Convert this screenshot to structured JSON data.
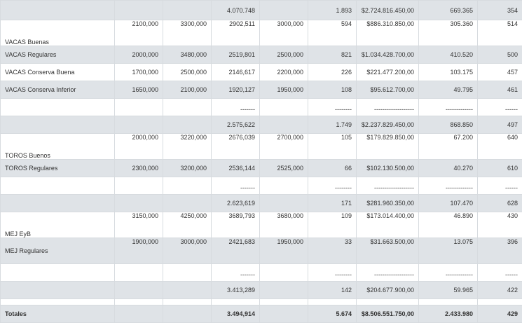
{
  "rows": [
    {
      "id": "r0",
      "style": "tint",
      "h": 28,
      "label": "",
      "labelPos": "top",
      "cells": [
        "",
        "",
        "4.070.748",
        "",
        "1.893",
        "$2.724.816.450,00",
        "669.365",
        "354"
      ]
    },
    {
      "id": "r1",
      "style": "plain tall",
      "h": 37,
      "label": "VACAS Buenas",
      "labelPos": "bottom",
      "cells": [
        "2100,000",
        "3300,000",
        "2902,511",
        "3000,000",
        "594",
        "$886.310.850,00",
        "305.360",
        "514"
      ]
    },
    {
      "id": "r2",
      "style": "tint",
      "h": 25,
      "label": "VACAS Regulares",
      "labelPos": "mid",
      "cells": [
        "2000,000",
        "3480,000",
        "2519,801",
        "2500,000",
        "821",
        "$1.034.428.700,00",
        "410.520",
        "500"
      ]
    },
    {
      "id": "r3",
      "style": "plain",
      "h": 25,
      "label": "VACAS Conserva Buena",
      "labelPos": "mid",
      "cells": [
        "1700,000",
        "2500,000",
        "2146,617",
        "2200,000",
        "226",
        "$221.477.200,00",
        "103.175",
        "457"
      ]
    },
    {
      "id": "r4",
      "style": "tint",
      "h": 25,
      "label": "VACAS Conserva Inferior",
      "labelPos": "mid",
      "cells": [
        "1650,000",
        "2100,000",
        "1920,127",
        "1950,000",
        "108",
        "$95.612.700,00",
        "49.795",
        "461"
      ]
    },
    {
      "id": "r5",
      "style": "plain",
      "h": 25,
      "label": "",
      "labelPos": "mid",
      "cells": [
        "",
        "",
        "-------",
        "",
        "--------",
        "-------------------",
        "-------------",
        "------"
      ]
    },
    {
      "id": "r6",
      "style": "tint",
      "h": 25,
      "label": "",
      "labelPos": "mid",
      "cells": [
        "",
        "",
        "2.575,622",
        "",
        "1.749",
        "$2.237.829.450,00",
        "868.850",
        "497"
      ]
    },
    {
      "id": "r7",
      "style": "plain tall",
      "h": 37,
      "label": "TOROS Buenos",
      "labelPos": "bottom",
      "cells": [
        "2000,000",
        "3220,000",
        "2676,039",
        "2700,000",
        "105",
        "$179.829.850,00",
        "67.200",
        "640"
      ]
    },
    {
      "id": "r8",
      "style": "tint",
      "h": 25,
      "label": "TOROS Regulares",
      "labelPos": "mid",
      "cells": [
        "2300,000",
        "3200,000",
        "2536,144",
        "2525,000",
        "66",
        "$102.130.500,00",
        "40.270",
        "610"
      ]
    },
    {
      "id": "r9",
      "style": "plain",
      "h": 25,
      "label": "",
      "labelPos": "mid",
      "cells": [
        "",
        "",
        "-------",
        "",
        "--------",
        "-------------------",
        "-------------",
        "------"
      ]
    },
    {
      "id": "r10",
      "style": "tint",
      "h": 25,
      "label": "",
      "labelPos": "mid",
      "cells": [
        "",
        "",
        "2.623,619",
        "",
        "171",
        "$281.960.350,00",
        "107.470",
        "628"
      ]
    },
    {
      "id": "r11",
      "style": "plain tall",
      "h": 37,
      "label": "MEJ EyB",
      "labelPos": "bottom",
      "cells": [
        "3150,000",
        "4250,000",
        "3689,793",
        "3680,000",
        "109",
        "$173.014.400,00",
        "46.890",
        "430"
      ]
    },
    {
      "id": "r12",
      "style": "tint tall",
      "h": 37,
      "label": "MEJ Regulares",
      "labelPos": "lowmid",
      "cells": [
        "1900,000",
        "3000,000",
        "2421,683",
        "1950,000",
        "33",
        "$31.663.500,00",
        "13.075",
        "396"
      ]
    },
    {
      "id": "r13",
      "style": "plain",
      "h": 25,
      "label": "",
      "labelPos": "mid",
      "cells": [
        "",
        "",
        "-------",
        "",
        "--------",
        "-------------------",
        "-------------",
        "------"
      ]
    },
    {
      "id": "r14",
      "style": "tint",
      "h": 25,
      "label": "",
      "labelPos": "mid",
      "cells": [
        "",
        "",
        "3.413,289",
        "",
        "142",
        "$204.677.900,00",
        "59.965",
        "422"
      ]
    },
    {
      "id": "r15",
      "style": "plain",
      "h": 9,
      "label": "",
      "labelPos": "mid",
      "cells": [
        "",
        "",
        "",
        "",
        "",
        "",
        "",
        ""
      ]
    },
    {
      "id": "r16",
      "style": "tint totals",
      "h": 25,
      "label": "Totales",
      "labelPos": "mid",
      "cells": [
        "",
        "",
        "3.494,914",
        "",
        "5.674",
        "$8.506.551.750,00",
        "2.433.980",
        "429"
      ]
    }
  ],
  "columns": [
    {
      "name": "col-category",
      "w": 163,
      "align": "l"
    },
    {
      "name": "col-a",
      "w": 69,
      "align": "r"
    },
    {
      "name": "col-b",
      "w": 69,
      "align": "r"
    },
    {
      "name": "col-c",
      "w": 69,
      "align": "r"
    },
    {
      "name": "col-d",
      "w": 69,
      "align": "r"
    },
    {
      "name": "col-e",
      "w": 69,
      "align": "r"
    },
    {
      "name": "col-f",
      "w": 89,
      "align": "r"
    },
    {
      "name": "col-g",
      "w": 84,
      "align": "r"
    },
    {
      "name": "col-h",
      "w": 64,
      "align": "r"
    }
  ],
  "colors": {
    "header_tint": "#dfe3e7",
    "border": "#d7dbdf",
    "text": "#333333"
  }
}
